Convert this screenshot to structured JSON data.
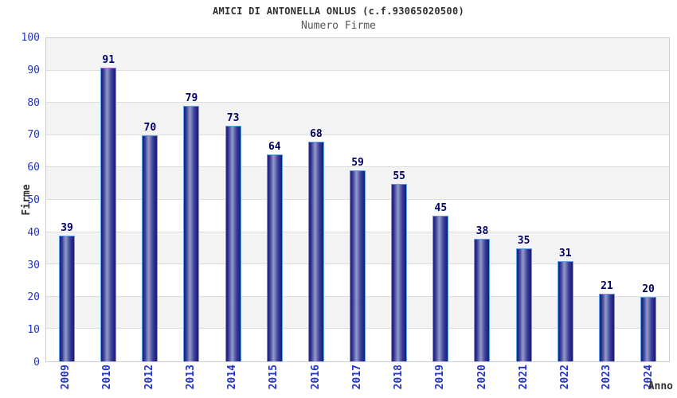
{
  "header": {
    "title": "AMICI DI ANTONELLA ONLUS (c.f.93065020500)",
    "subtitle": "Numero Firme"
  },
  "chart_data": {
    "type": "bar",
    "title": "AMICI DI ANTONELLA ONLUS (c.f.93065020500)",
    "subtitle": "Numero Firme",
    "categories": [
      "2009",
      "2010",
      "2012",
      "2013",
      "2014",
      "2015",
      "2016",
      "2017",
      "2018",
      "2019",
      "2020",
      "2021",
      "2022",
      "2023",
      "2024"
    ],
    "values": [
      39,
      91,
      70,
      79,
      73,
      64,
      68,
      59,
      55,
      45,
      38,
      35,
      31,
      21,
      20
    ],
    "xlabel": "Anno",
    "ylabel": "Firme",
    "ylim": [
      0,
      100
    ],
    "yticks": [
      0,
      10,
      20,
      30,
      40,
      50,
      60,
      70,
      80,
      90,
      100
    ],
    "grid": "alternating horizontal bands",
    "legend_position": "none",
    "colors": {
      "bar_dark": "#20207d",
      "bar_highlight": "#959bc8",
      "bar_border": "#5ba3ef",
      "band_gray": "#f3f3f3",
      "band_white": "#ffffff",
      "band_line": "#dddddd",
      "plot_border": "#cccccc",
      "axis_tick_label": "#2233cc",
      "value_label": "#000066",
      "axis_title": "#333333"
    }
  }
}
